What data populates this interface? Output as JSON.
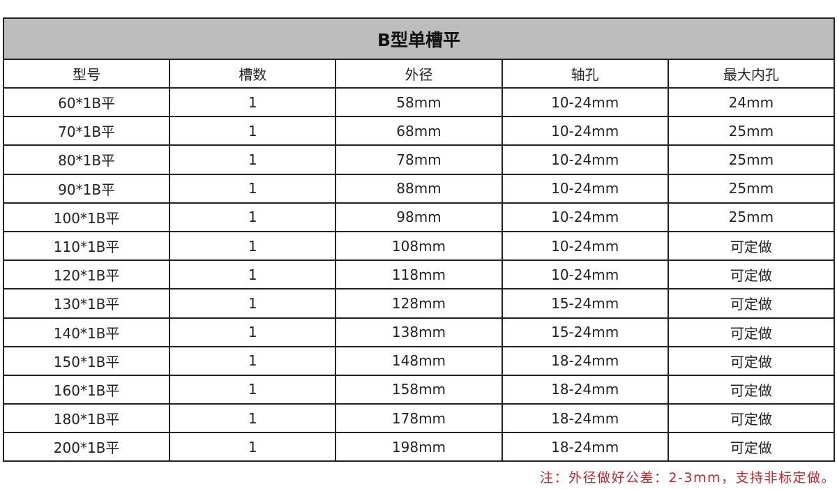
{
  "title": "B型单槽平",
  "columns": [
    "型号",
    "槽数",
    "外径",
    "轴孔",
    "最大内孔"
  ],
  "rows": [
    [
      "60*1B平",
      "1",
      "58mm",
      "10-24mm",
      "24mm"
    ],
    [
      "70*1B平",
      "1",
      "68mm",
      "10-24mm",
      "25mm"
    ],
    [
      "80*1B平",
      "1",
      "78mm",
      "10-24mm",
      "25mm"
    ],
    [
      "90*1B平",
      "1",
      "88mm",
      "10-24mm",
      "25mm"
    ],
    [
      "100*1B平",
      "1",
      "98mm",
      "10-24mm",
      "25mm"
    ],
    [
      "110*1B平",
      "1",
      "108mm",
      "10-24mm",
      "可定做"
    ],
    [
      "120*1B平",
      "1",
      "118mm",
      "10-24mm",
      "可定做"
    ],
    [
      "130*1B平",
      "1",
      "128mm",
      "15-24mm",
      "可定做"
    ],
    [
      "140*1B平",
      "1",
      "138mm",
      "15-24mm",
      "可定做"
    ],
    [
      "150*1B平",
      "1",
      "148mm",
      "18-24mm",
      "可定做"
    ],
    [
      "160*1B平",
      "1",
      "158mm",
      "18-24mm",
      "可定做"
    ],
    [
      "180*1B平",
      "1",
      "178mm",
      "18-24mm",
      "可定做"
    ],
    [
      "200*1B平",
      "1",
      "198mm",
      "18-24mm",
      "可定做"
    ]
  ],
  "note": "注：外径做好公差：2-3mm，支持非标定做。",
  "colors": {
    "title_bg": "#bdbdbd",
    "border": "#222222",
    "note": "#c0282d"
  }
}
